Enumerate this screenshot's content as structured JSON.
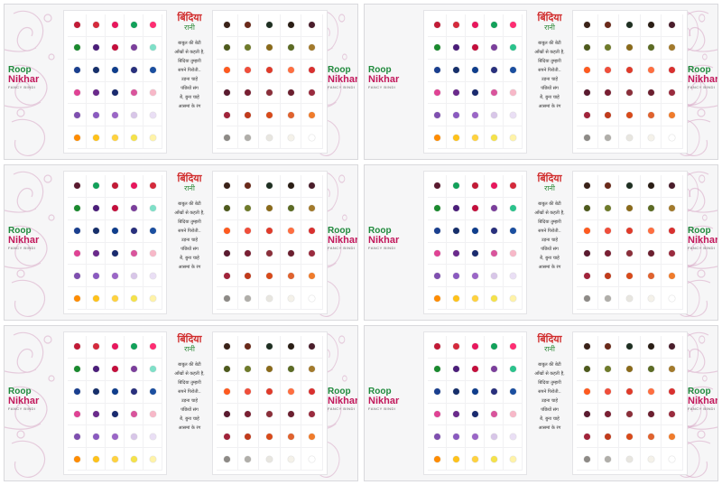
{
  "product": {
    "logo_line1": "Roop",
    "logo_line2": "Nikhar",
    "logo_tag": "FANCY BINDI",
    "brand_hindi": "बिंदिया",
    "brand_hindi_sub": "रानी",
    "poem": [
      "बाबुल की बेटी",
      "आँखों से कहती है,",
      "बिंदिया तुम्हारी",
      "सपने पिरोती..",
      "उड़ना चाहे",
      "पंछियों संग",
      "बेे, बुना चाहे",
      "आसमां के रंग"
    ]
  },
  "colors": {
    "card_bg": "#f6f6f7",
    "pattern": "#d8a8c6",
    "logo_green": "#1f8a3c",
    "logo_magenta": "#c2185b",
    "brand_red": "#d12d2d"
  },
  "cards": [
    {
      "left": [
        [
          "#c21a36",
          "#d52a3c",
          "#e8175d",
          "#12a15a",
          "#ff2d72"
        ],
        [
          "#1a8a2e",
          "#4b1e7a",
          "#c40e3c",
          "#7b3f9c",
          "#7fe0c8"
        ],
        [
          "#1a3f8f",
          "#162f6b",
          "#0f3d8c",
          "#29307d",
          "#1b4fa0"
        ],
        [
          "#e04294",
          "#6a2a8c",
          "#1a2b6f",
          "#d9549c",
          "#f7b8c8"
        ],
        [
          "#7f4fb0",
          "#8a5ac0",
          "#9b66c7",
          "#d8c6e8",
          "#eadff5"
        ],
        [
          "#ff8c00",
          "#ffc21a",
          "#ffd23f",
          "#f5e24a",
          "#fff3a8"
        ]
      ],
      "right": [
        [
          "#3a2218",
          "#6b2a1a",
          "#1f3022",
          "#2a1d14",
          "#4a1d2b"
        ],
        [
          "#4e5a1c",
          "#6f7b2a",
          "#8a6a1a",
          "#5c6b24",
          "#a37a2c"
        ],
        [
          "#ff5a1f",
          "#f04e3a",
          "#e03b2a",
          "#ff6e40",
          "#d9302f"
        ],
        [
          "#5a1a2f",
          "#7a1f33",
          "#8b2f3a",
          "#6b1f2f",
          "#9a2b3e"
        ],
        [
          "#a1233a",
          "#c13b1c",
          "#d84a1a",
          "#e0622e",
          "#f07b2b"
        ],
        [
          "#8d8a86",
          "#b0aea9",
          "#e8e6e0",
          "#f5f2ea",
          "#ffffff"
        ]
      ]
    },
    {
      "left": [
        [
          "#c21a36",
          "#d52a3c",
          "#e8175d",
          "#12a15a",
          "#ff2d72"
        ],
        [
          "#1a8a2e",
          "#4b1e7a",
          "#c40e3c",
          "#7b3f9c",
          "#2bc38c"
        ],
        [
          "#1a3f8f",
          "#162f6b",
          "#0f3d8c",
          "#29307d",
          "#1b4fa0"
        ],
        [
          "#e04294",
          "#6a2a8c",
          "#1a2b6f",
          "#d9549c",
          "#f7b8c8"
        ],
        [
          "#7f4fb0",
          "#8a5ac0",
          "#9b66c7",
          "#d8c6e8",
          "#eadff5"
        ],
        [
          "#ff8c00",
          "#ffc21a",
          "#ffd23f",
          "#f5e24a",
          "#fff3a8"
        ]
      ],
      "right": [
        [
          "#3a2218",
          "#6b2a1a",
          "#1f3022",
          "#2a1d14",
          "#4a1d2b"
        ],
        [
          "#4e5a1c",
          "#6f7b2a",
          "#8a6a1a",
          "#5c6b24",
          "#a37a2c"
        ],
        [
          "#ff5a1f",
          "#f04e3a",
          "#e03b2a",
          "#ff6e40",
          "#d9302f"
        ],
        [
          "#5a1a2f",
          "#7a1f33",
          "#8b2f3a",
          "#6b1f2f",
          "#9a2b3e"
        ],
        [
          "#a1233a",
          "#c13b1c",
          "#d84a1a",
          "#e0622e",
          "#f07b2b"
        ],
        [
          "#8d8a86",
          "#b0aea9",
          "#e8e6e0",
          "#f5f2ea",
          "#ffffff"
        ]
      ]
    },
    {
      "left": [
        [
          "#5a1a2f",
          "#12a15a",
          "#c21a36",
          "#e8175d",
          "#d52a3c"
        ],
        [
          "#1a8a2e",
          "#4b1e7a",
          "#c40e3c",
          "#7b3f9c",
          "#7fe0c8"
        ],
        [
          "#1a3f8f",
          "#162f6b",
          "#0f3d8c",
          "#29307d",
          "#1b4fa0"
        ],
        [
          "#e04294",
          "#6a2a8c",
          "#1a2b6f",
          "#d9549c",
          "#f7b8c8"
        ],
        [
          "#7f4fb0",
          "#8a5ac0",
          "#9b66c7",
          "#d8c6e8",
          "#eadff5"
        ],
        [
          "#ff8c00",
          "#ffc21a",
          "#ffd23f",
          "#f5e24a",
          "#fff3a8"
        ]
      ],
      "right": [
        [
          "#3a2218",
          "#6b2a1a",
          "#1f3022",
          "#2a1d14",
          "#4a1d2b"
        ],
        [
          "#4e5a1c",
          "#6f7b2a",
          "#8a6a1a",
          "#5c6b24",
          "#a37a2c"
        ],
        [
          "#ff5a1f",
          "#f04e3a",
          "#e03b2a",
          "#ff6e40",
          "#d9302f"
        ],
        [
          "#5a1a2f",
          "#7a1f33",
          "#8b2f3a",
          "#6b1f2f",
          "#9a2b3e"
        ],
        [
          "#a1233a",
          "#c13b1c",
          "#d84a1a",
          "#e0622e",
          "#f07b2b"
        ],
        [
          "#8d8a86",
          "#b0aea9",
          "#e8e6e0",
          "#f5f2ea",
          "#ffffff"
        ]
      ]
    },
    {
      "left": [
        [
          "#5a1a2f",
          "#12a15a",
          "#c21a36",
          "#e8175d",
          "#d52a3c"
        ],
        [
          "#1a8a2e",
          "#4b1e7a",
          "#c40e3c",
          "#7b3f9c",
          "#2bc38c"
        ],
        [
          "#1a3f8f",
          "#162f6b",
          "#0f3d8c",
          "#29307d",
          "#1b4fa0"
        ],
        [
          "#e04294",
          "#6a2a8c",
          "#1a2b6f",
          "#d9549c",
          "#f7b8c8"
        ],
        [
          "#7f4fb0",
          "#8a5ac0",
          "#9b66c7",
          "#d8c6e8",
          "#eadff5"
        ],
        [
          "#ff8c00",
          "#ffc21a",
          "#ffd23f",
          "#f5e24a",
          "#fff3a8"
        ]
      ],
      "right": [
        [
          "#3a2218",
          "#6b2a1a",
          "#1f3022",
          "#2a1d14",
          "#4a1d2b"
        ],
        [
          "#4e5a1c",
          "#6f7b2a",
          "#8a6a1a",
          "#5c6b24",
          "#a37a2c"
        ],
        [
          "#ff5a1f",
          "#f04e3a",
          "#e03b2a",
          "#ff6e40",
          "#d9302f"
        ],
        [
          "#5a1a2f",
          "#7a1f33",
          "#8b2f3a",
          "#6b1f2f",
          "#9a2b3e"
        ],
        [
          "#a1233a",
          "#c13b1c",
          "#d84a1a",
          "#e0622e",
          "#f07b2b"
        ],
        [
          "#8d8a86",
          "#b0aea9",
          "#e8e6e0",
          "#f5f2ea",
          "#ffffff"
        ]
      ]
    },
    {
      "left": [
        [
          "#c21a36",
          "#d52a3c",
          "#e8175d",
          "#12a15a",
          "#ff2d72"
        ],
        [
          "#1a8a2e",
          "#4b1e7a",
          "#c40e3c",
          "#7b3f9c",
          "#7fe0c8"
        ],
        [
          "#1a3f8f",
          "#162f6b",
          "#0f3d8c",
          "#29307d",
          "#1b4fa0"
        ],
        [
          "#e04294",
          "#6a2a8c",
          "#1a2b6f",
          "#d9549c",
          "#f7b8c8"
        ],
        [
          "#7f4fb0",
          "#8a5ac0",
          "#9b66c7",
          "#d8c6e8",
          "#eadff5"
        ],
        [
          "#ff8c00",
          "#ffc21a",
          "#ffd23f",
          "#f5e24a",
          "#fff3a8"
        ]
      ],
      "right": [
        [
          "#3a2218",
          "#6b2a1a",
          "#1f3022",
          "#2a1d14",
          "#4a1d2b"
        ],
        [
          "#4e5a1c",
          "#6f7b2a",
          "#8a6a1a",
          "#5c6b24",
          "#a37a2c"
        ],
        [
          "#ff5a1f",
          "#f04e3a",
          "#e03b2a",
          "#ff6e40",
          "#d9302f"
        ],
        [
          "#5a1a2f",
          "#7a1f33",
          "#8b2f3a",
          "#6b1f2f",
          "#9a2b3e"
        ],
        [
          "#a1233a",
          "#c13b1c",
          "#d84a1a",
          "#e0622e",
          "#f07b2b"
        ],
        [
          "#8d8a86",
          "#b0aea9",
          "#e8e6e0",
          "#f5f2ea",
          "#ffffff"
        ]
      ]
    },
    {
      "left": [
        [
          "#c21a36",
          "#d52a3c",
          "#e8175d",
          "#12a15a",
          "#ff2d72"
        ],
        [
          "#1a8a2e",
          "#4b1e7a",
          "#c40e3c",
          "#7b3f9c",
          "#2bc38c"
        ],
        [
          "#1a3f8f",
          "#162f6b",
          "#0f3d8c",
          "#29307d",
          "#1b4fa0"
        ],
        [
          "#e04294",
          "#6a2a8c",
          "#1a2b6f",
          "#d9549c",
          "#f7b8c8"
        ],
        [
          "#7f4fb0",
          "#8a5ac0",
          "#9b66c7",
          "#d8c6e8",
          "#eadff5"
        ],
        [
          "#ff8c00",
          "#ffc21a",
          "#ffd23f",
          "#f5e24a",
          "#fff3a8"
        ]
      ],
      "right": [
        [
          "#3a2218",
          "#6b2a1a",
          "#1f3022",
          "#2a1d14",
          "#4a1d2b"
        ],
        [
          "#4e5a1c",
          "#6f7b2a",
          "#8a6a1a",
          "#5c6b24",
          "#a37a2c"
        ],
        [
          "#ff5a1f",
          "#f04e3a",
          "#e03b2a",
          "#ff6e40",
          "#d9302f"
        ],
        [
          "#5a1a2f",
          "#7a1f33",
          "#8b2f3a",
          "#6b1f2f",
          "#9a2b3e"
        ],
        [
          "#a1233a",
          "#c13b1c",
          "#d84a1a",
          "#e0622e",
          "#f07b2b"
        ],
        [
          "#8d8a86",
          "#b0aea9",
          "#e8e6e0",
          "#f5f2ea",
          "#ffffff"
        ]
      ]
    }
  ]
}
